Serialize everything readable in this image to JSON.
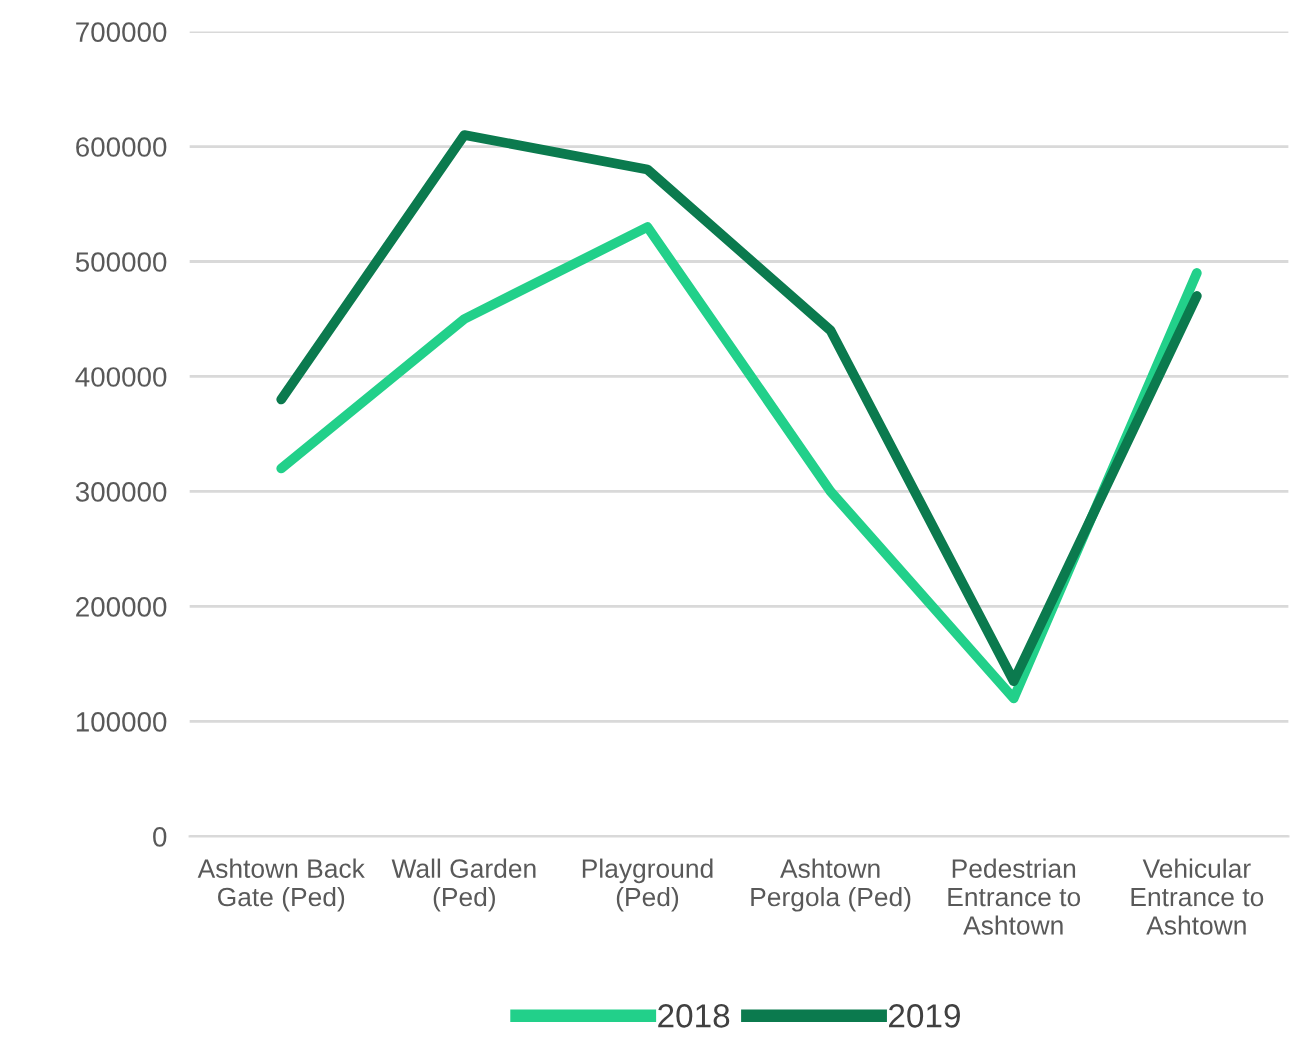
{
  "chart_data": {
    "type": "line",
    "categories": [
      "Ashtown Back\nGate (Ped)",
      "Wall Garden\n(Ped)",
      "Playground\n(Ped)",
      "Ashtown\nPergola (Ped)",
      "Pedestrian\nEntrance to\nAshtown",
      "Vehicular\nEntrance to\nAshtown"
    ],
    "series": [
      {
        "name": "2018",
        "color": "#22d08a",
        "values": [
          320000,
          450000,
          530000,
          300000,
          120000,
          490000
        ]
      },
      {
        "name": "2019",
        "color": "#0b7a4e",
        "values": [
          380000,
          610000,
          580000,
          440000,
          135000,
          470000
        ]
      }
    ],
    "ylim": [
      0,
      700000
    ],
    "yticks": [
      0,
      100000,
      200000,
      300000,
      400000,
      500000,
      600000,
      700000
    ],
    "grid": "y",
    "legend": "bottom",
    "marker": "none",
    "line_style": "solid"
  }
}
